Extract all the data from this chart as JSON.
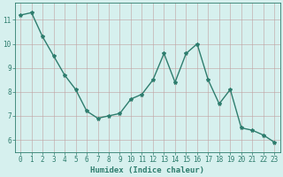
{
  "x": [
    0,
    1,
    2,
    3,
    4,
    5,
    6,
    7,
    8,
    9,
    10,
    11,
    12,
    13,
    14,
    15,
    16,
    17,
    18,
    19,
    20,
    21,
    22,
    23
  ],
  "y": [
    11.2,
    11.3,
    10.3,
    9.5,
    8.7,
    8.1,
    7.2,
    6.9,
    7.0,
    7.1,
    7.7,
    7.9,
    8.5,
    9.6,
    8.4,
    9.6,
    10.0,
    8.5,
    7.5,
    8.1,
    6.5,
    6.4,
    6.2,
    5.9
  ],
  "xlabel": "Humidex (Indice chaleur)",
  "line_color": "#2e7d6e",
  "marker": "*",
  "marker_size": 3,
  "bg_color": "#d6f0ee",
  "grid_color": "#c0a0a0",
  "axis_color": "#2e7d6e",
  "tick_color": "#2e7d6e",
  "ylim": [
    5.5,
    11.7
  ],
  "xlim": [
    -0.5,
    23.5
  ],
  "yticks": [
    6,
    7,
    8,
    9,
    10,
    11
  ],
  "xticks": [
    0,
    1,
    2,
    3,
    4,
    5,
    6,
    7,
    8,
    9,
    10,
    11,
    12,
    13,
    14,
    15,
    16,
    17,
    18,
    19,
    20,
    21,
    22,
    23
  ],
  "linewidth": 1.0,
  "xlabel_fontsize": 6.5,
  "tick_fontsize": 5.5
}
